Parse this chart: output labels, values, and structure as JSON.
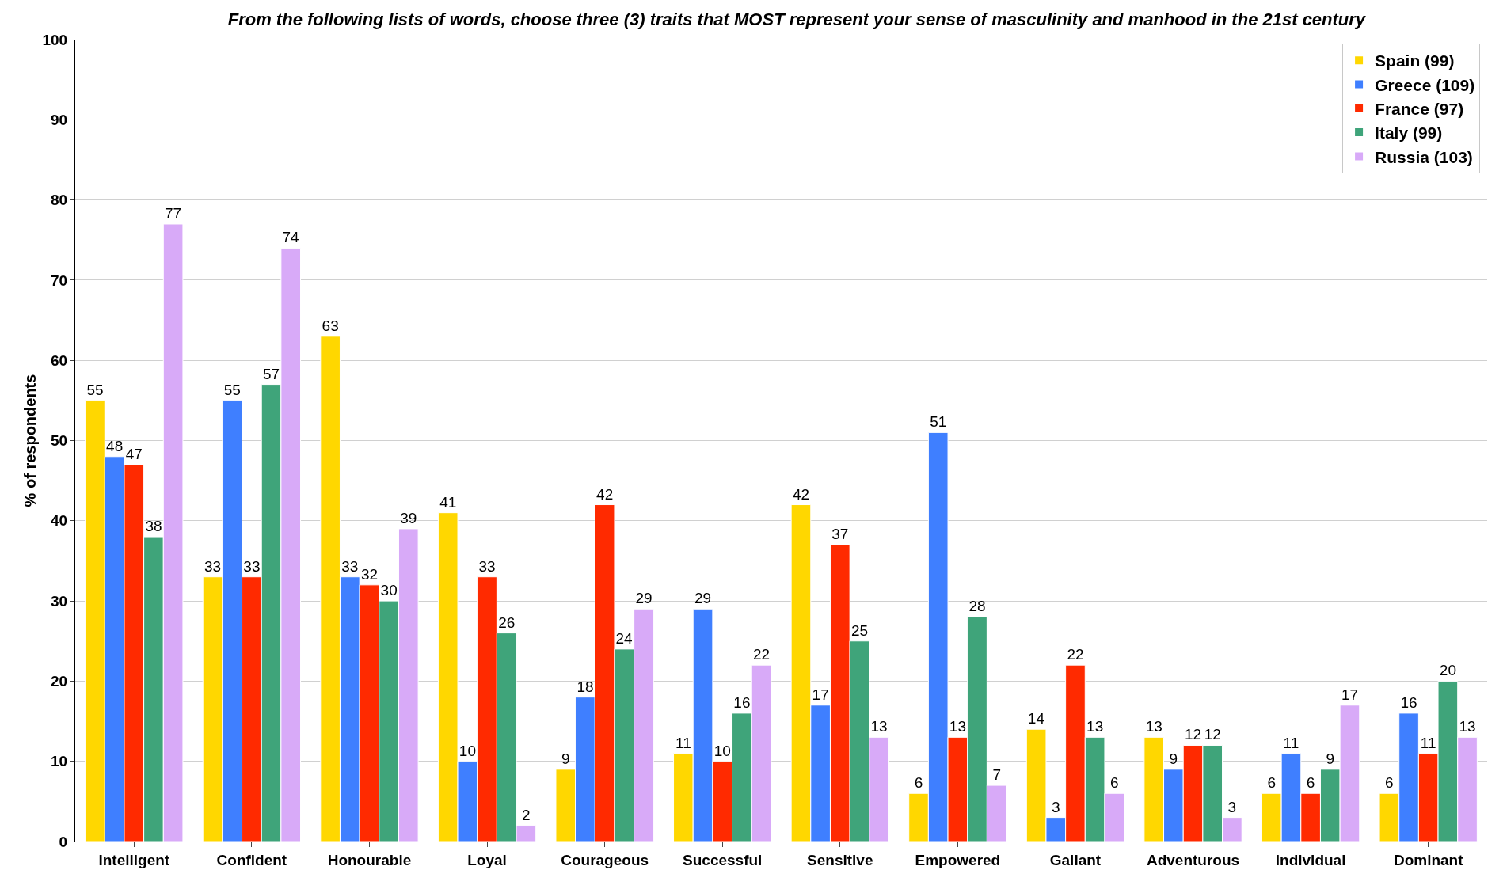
{
  "chart_data": {
    "type": "bar",
    "title": "From the following lists of words, choose three (3) traits that MOST represent your sense of masculinity and manhood in the 21st century",
    "ylabel": "% of respondents",
    "categories": [
      "Intelligent",
      "Confident",
      "Honourable",
      "Loyal",
      "Courageous",
      "Successful",
      "Sensitive",
      "Empowered",
      "Gallant",
      "Adventurous",
      "Individual",
      "Dominant"
    ],
    "series": [
      {
        "name": "Spain (99)",
        "color": "#ffd700",
        "values": [
          55,
          33,
          63,
          41,
          9,
          11,
          42,
          6,
          14,
          13,
          6,
          6
        ]
      },
      {
        "name": "Greece (109)",
        "color": "#3f7fff",
        "values": [
          48,
          55,
          33,
          10,
          18,
          29,
          17,
          51,
          3,
          9,
          11,
          16
        ]
      },
      {
        "name": "France (97)",
        "color": "#ff2a00",
        "values": [
          47,
          33,
          32,
          33,
          42,
          10,
          37,
          13,
          22,
          12,
          6,
          11
        ]
      },
      {
        "name": "Italy (99)",
        "color": "#3fa47a",
        "values": [
          38,
          57,
          30,
          26,
          24,
          16,
          25,
          28,
          13,
          12,
          9,
          20
        ]
      },
      {
        "name": "Russia (103)",
        "color": "#d8aaf8",
        "values": [
          77,
          74,
          39,
          2,
          29,
          22,
          13,
          7,
          6,
          3,
          17,
          13
        ]
      }
    ],
    "ylim": [
      0,
      100
    ],
    "yticks": [
      0,
      10,
      20,
      30,
      40,
      50,
      60,
      70,
      80,
      90,
      100
    ],
    "grid": "y",
    "legend": "top right",
    "data_labels": true
  }
}
